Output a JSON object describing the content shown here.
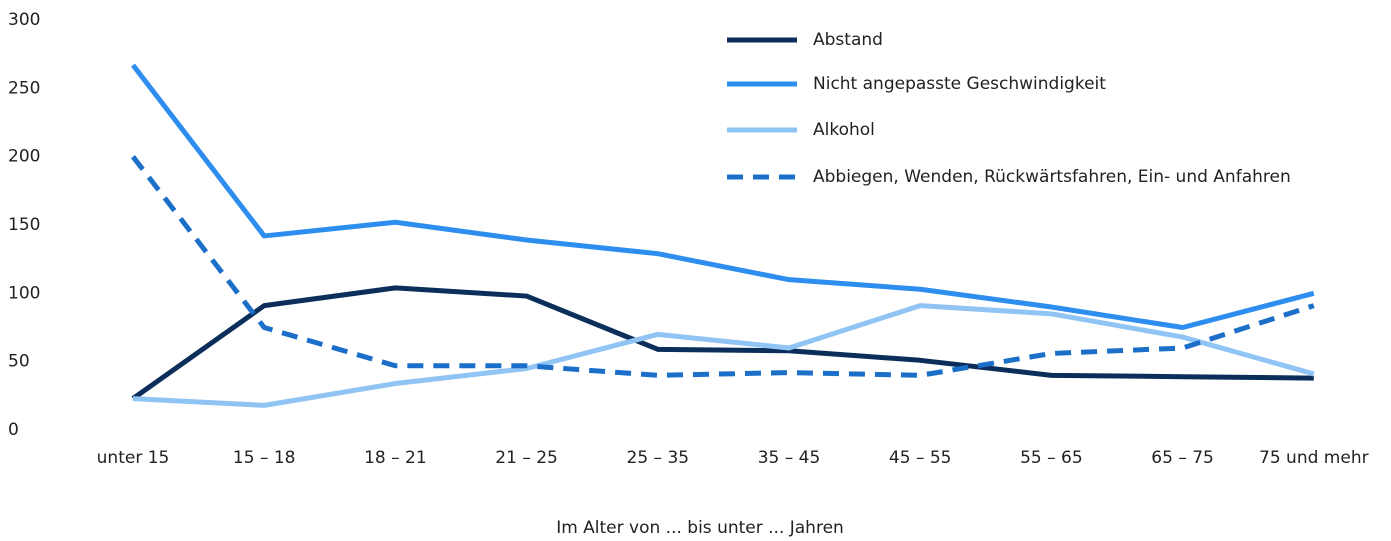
{
  "chart_data": {
    "type": "line",
    "x_label": "Im Alter von ... bis unter ... Jahren",
    "categories": [
      "unter 15",
      "15 – 18",
      "18 – 21",
      "21 – 25",
      "25 – 35",
      "35 – 45",
      "45 – 55",
      "55 – 65",
      "65 – 75",
      "75 und mehr"
    ],
    "series": [
      {
        "name": "Abstand",
        "color": "#0b2f5a",
        "dashed": false,
        "values": [
          23,
          91,
          104,
          98,
          59,
          58,
          51,
          40,
          39,
          38
        ]
      },
      {
        "name": "Nicht angepasste Geschwindigkeit",
        "color": "#2e8ef0",
        "dashed": false,
        "values": [
          267,
          142,
          152,
          139,
          129,
          110,
          103,
          90,
          75,
          100
        ]
      },
      {
        "name": "Alkohol",
        "color": "#90c4f5",
        "dashed": false,
        "values": [
          23,
          18,
          34,
          45,
          70,
          60,
          91,
          85,
          68,
          41
        ]
      },
      {
        "name": "Abbiegen, Wenden, Rückwärtsfahren, Ein- und Anfahren",
        "color": "#1b6fc9",
        "dashed": true,
        "values": [
          200,
          75,
          47,
          47,
          40,
          42,
          40,
          56,
          60,
          91
        ]
      }
    ],
    "ylim": [
      0,
      300
    ],
    "yticks": [
      0,
      50,
      100,
      150,
      200,
      250,
      300
    ],
    "grid": false,
    "legend": "top-right"
  }
}
